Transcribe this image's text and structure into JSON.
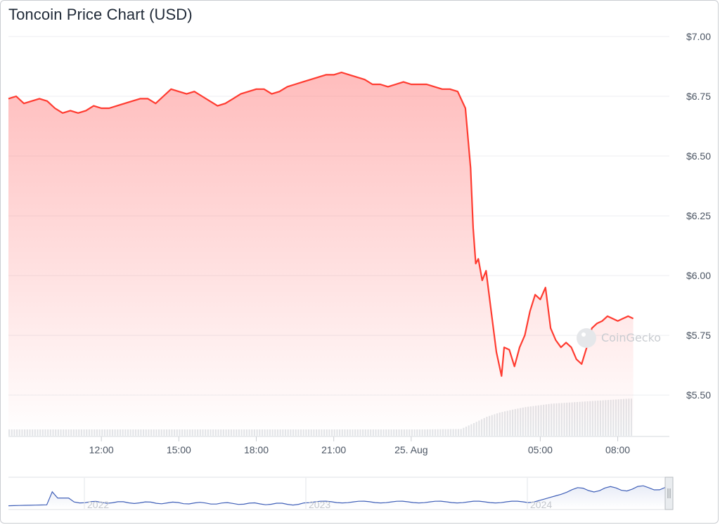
{
  "chart_data": {
    "type": "area",
    "title": "Toncoin Price Chart (USD)",
    "watermark": "CoinGecko",
    "ylim": [
      5.33,
      7.0
    ],
    "ytick_labels": [
      "$7.00",
      "$6.75",
      "$6.50",
      "$6.25",
      "$6.00",
      "$5.75",
      "$5.50"
    ],
    "ytick_values": [
      7.0,
      6.75,
      6.5,
      6.25,
      6.0,
      5.75,
      5.5
    ],
    "xlim": [
      0,
      25.6
    ],
    "xtick_labels": [
      "12:00",
      "15:00",
      "18:00",
      "21:00",
      "25. Aug",
      "05:00",
      "08:00"
    ],
    "xtick_values": [
      3.6,
      6.6,
      9.6,
      12.6,
      15.6,
      20.6,
      23.6
    ],
    "line_color": "#ff3b30",
    "fill_color": "#ff6b6b",
    "price": {
      "x": [
        0,
        0.3,
        0.6,
        0.9,
        1.2,
        1.5,
        1.8,
        2.1,
        2.4,
        2.7,
        3.0,
        3.3,
        3.6,
        3.9,
        4.2,
        4.5,
        4.8,
        5.1,
        5.4,
        5.7,
        6.0,
        6.3,
        6.6,
        6.9,
        7.2,
        7.5,
        7.8,
        8.1,
        8.4,
        8.7,
        9.0,
        9.3,
        9.6,
        9.9,
        10.2,
        10.5,
        10.8,
        11.1,
        11.4,
        11.7,
        12.0,
        12.3,
        12.6,
        12.9,
        13.2,
        13.5,
        13.8,
        14.1,
        14.4,
        14.7,
        15.0,
        15.3,
        15.6,
        15.9,
        16.2,
        16.5,
        16.8,
        17.1,
        17.4,
        17.7,
        17.9,
        18.0,
        18.1,
        18.2,
        18.35,
        18.5,
        18.7,
        18.9,
        19.1,
        19.2,
        19.4,
        19.6,
        19.8,
        20.0,
        20.2,
        20.4,
        20.6,
        20.8,
        21.0,
        21.2,
        21.4,
        21.6,
        21.8,
        22.0,
        22.2,
        22.4,
        22.6,
        22.8,
        23.0,
        23.2,
        23.4,
        23.6,
        23.8,
        24.0,
        24.2
      ],
      "y": [
        6.74,
        6.75,
        6.72,
        6.73,
        6.74,
        6.73,
        6.7,
        6.68,
        6.69,
        6.68,
        6.69,
        6.71,
        6.7,
        6.7,
        6.71,
        6.72,
        6.73,
        6.74,
        6.74,
        6.72,
        6.75,
        6.78,
        6.77,
        6.76,
        6.77,
        6.75,
        6.73,
        6.71,
        6.72,
        6.74,
        6.76,
        6.77,
        6.78,
        6.78,
        6.76,
        6.77,
        6.79,
        6.8,
        6.81,
        6.82,
        6.83,
        6.84,
        6.84,
        6.85,
        6.84,
        6.83,
        6.82,
        6.8,
        6.8,
        6.79,
        6.8,
        6.81,
        6.8,
        6.8,
        6.8,
        6.79,
        6.78,
        6.78,
        6.77,
        6.7,
        6.45,
        6.2,
        6.05,
        6.07,
        5.98,
        6.02,
        5.85,
        5.68,
        5.58,
        5.7,
        5.69,
        5.62,
        5.7,
        5.75,
        5.85,
        5.92,
        5.9,
        5.95,
        5.78,
        5.73,
        5.7,
        5.72,
        5.7,
        5.65,
        5.63,
        5.7,
        5.78,
        5.8,
        5.81,
        5.83,
        5.82,
        5.81,
        5.82,
        5.83,
        5.82
      ]
    },
    "volume": {
      "x": [
        0,
        2,
        4,
        6,
        8,
        10,
        12,
        14,
        16,
        17.5,
        18.0,
        18.5,
        19.0,
        19.5,
        20.0,
        20.5,
        21.0,
        21.5,
        22.0,
        22.5,
        23.0,
        23.5,
        24.0,
        24.2
      ],
      "y": [
        0.15,
        0.15,
        0.15,
        0.15,
        0.15,
        0.15,
        0.15,
        0.15,
        0.15,
        0.16,
        0.3,
        0.45,
        0.55,
        0.62,
        0.68,
        0.72,
        0.76,
        0.78,
        0.8,
        0.82,
        0.84,
        0.86,
        0.88,
        0.88
      ]
    },
    "navigator": {
      "xtick_labels": [
        "2022",
        "2023",
        "2024"
      ],
      "line_color": "#3f5fb8"
    }
  }
}
